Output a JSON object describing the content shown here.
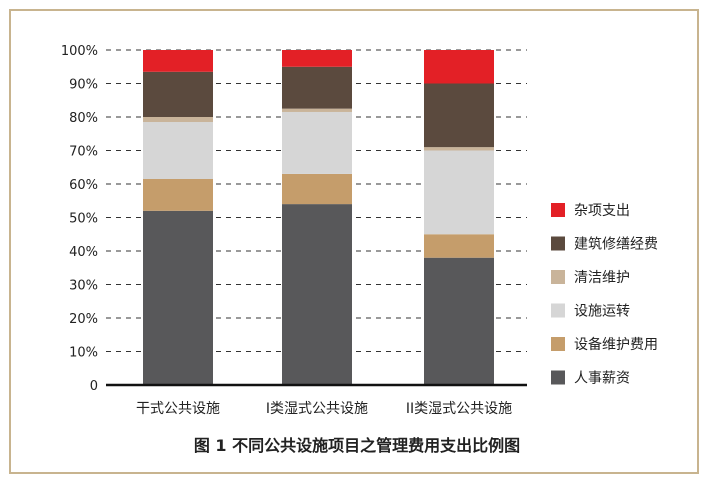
{
  "figure": {
    "caption": "图 1 不同公共设施项目之管理费用支出比例图",
    "border_color": "#c8b48f"
  },
  "chart_data": {
    "type": "bar",
    "stacked": true,
    "categories": [
      "干式公共设施",
      "I类湿式公共设施",
      "II类湿式公共设施"
    ],
    "y_ticks": [
      "0",
      "10%",
      "20%",
      "30%",
      "40%",
      "50%",
      "60%",
      "70%",
      "80%",
      "90%",
      "100%"
    ],
    "ylim": [
      0,
      100
    ],
    "grid": "dashed horizontal",
    "legend_position": "right",
    "series": [
      {
        "name": "人事薪资",
        "color": "#58585a",
        "values": [
          52,
          54,
          38
        ]
      },
      {
        "name": "设备维护费用",
        "color": "#c59d6b",
        "values": [
          9.5,
          9,
          7
        ]
      },
      {
        "name": "设施运转",
        "color": "#d6d6d6",
        "values": [
          17,
          18.5,
          25
        ]
      },
      {
        "name": "清洁维护",
        "color": "#c9b49a",
        "values": [
          1.5,
          1,
          1
        ]
      },
      {
        "name": "建筑修缮经费",
        "color": "#5b4a3e",
        "values": [
          13.5,
          12.5,
          19
        ]
      },
      {
        "name": "杂项支出",
        "color": "#e32026",
        "values": [
          6.5,
          5,
          10
        ]
      }
    ]
  }
}
